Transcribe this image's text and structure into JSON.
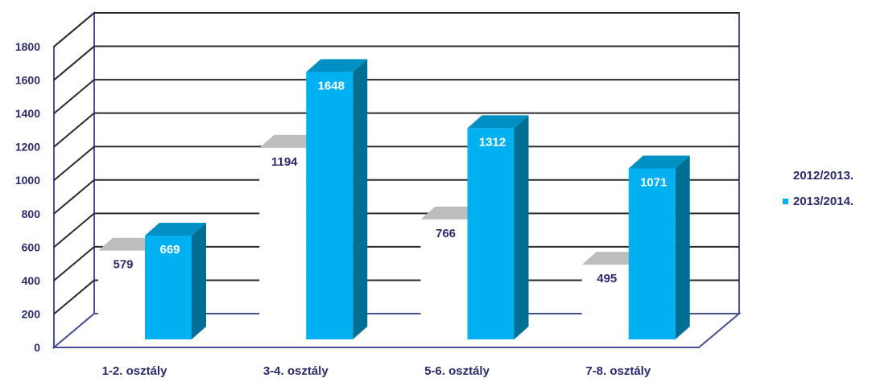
{
  "chart_data": {
    "type": "bar",
    "title": "",
    "xlabel": "",
    "ylabel": "",
    "categories": [
      "1-2. osztály",
      "3-4. osztály",
      "5-6. osztály",
      "7-8. osztály"
    ],
    "series": [
      {
        "name": "2012/2013.",
        "values": [
          579,
          1194,
          766,
          495
        ],
        "color": "#ffffff",
        "label_color": "#2b2b6a"
      },
      {
        "name": "2013/2014.",
        "values": [
          669,
          1648,
          1312,
          1071
        ],
        "color": "#00b0f0",
        "label_color": "#ffffff"
      }
    ],
    "ylim": [
      0,
      1800
    ],
    "yticks": [
      0,
      200,
      400,
      600,
      800,
      1000,
      1200,
      1400,
      1600,
      1800
    ],
    "grid": true,
    "legend": "right",
    "style": "3d-column",
    "colors": {
      "axis_text": "#2b2b6a",
      "frame": "#4a4f8f",
      "grid": "#2a2a2a",
      "bar_blue": "#00b0f0",
      "bar_blue_side": "#006f94",
      "bar_blue_top": "#0090c4"
    }
  }
}
